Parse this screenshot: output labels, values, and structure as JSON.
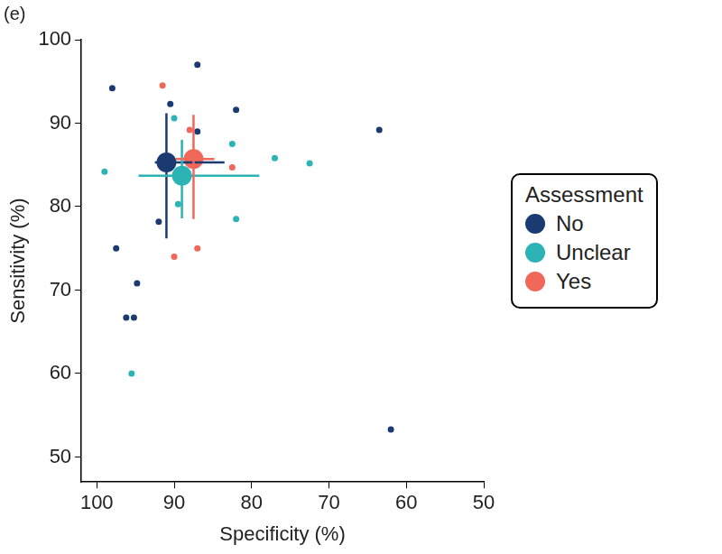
{
  "chart_data": {
    "type": "scatter",
    "title": "(e)",
    "x_label": "Specificity (%)",
    "y_label": "Sensitivity (%)",
    "xlim": [
      102,
      50
    ],
    "ylim": [
      47,
      100
    ],
    "xticks": [
      100,
      90,
      80,
      70,
      60,
      50
    ],
    "yticks": [
      50,
      60,
      70,
      80,
      90,
      100
    ],
    "grid": false,
    "legend": "right",
    "legend_title": "Assessment",
    "series": [
      {
        "name": "No",
        "color": "#1b3a72",
        "x": [
          98.0,
          90.5,
          87.0,
          82.0,
          87.0,
          63.5,
          92.0,
          97.5,
          94.8,
          96.2,
          95.2,
          62.0
        ],
        "values": [
          94.2,
          92.3,
          97.0,
          91.6,
          89.0,
          89.2,
          78.2,
          75.0,
          70.8,
          66.7,
          66.7,
          53.3
        ],
        "summary": {
          "x": 91.0,
          "y": 85.3,
          "x_ci": [
            92.5,
            83.5
          ],
          "y_ci": [
            76.2,
            91.2
          ]
        }
      },
      {
        "name": "Unclear",
        "color": "#2bb3b5",
        "x": [
          99.0,
          90.0,
          89.5,
          82.5,
          82.0,
          77.0,
          72.5,
          95.5
        ],
        "values": [
          84.2,
          90.6,
          80.3,
          87.5,
          78.5,
          85.8,
          85.2,
          60.0
        ],
        "summary": {
          "x": 89.0,
          "y": 83.7,
          "x_ci": [
            94.6,
            79.0
          ],
          "y_ci": [
            78.6,
            88.0
          ]
        }
      },
      {
        "name": "Yes",
        "color": "#f0685a",
        "x": [
          91.5,
          88.0,
          87.0,
          82.5,
          87.0,
          90.0
        ],
        "values": [
          94.5,
          89.2,
          86.1,
          84.7,
          75.0,
          74.0
        ],
        "summary": {
          "x": 87.5,
          "y": 85.7,
          "x_ci": [
            89.8,
            84.8
          ],
          "y_ci": [
            78.5,
            91.0
          ]
        }
      }
    ]
  }
}
